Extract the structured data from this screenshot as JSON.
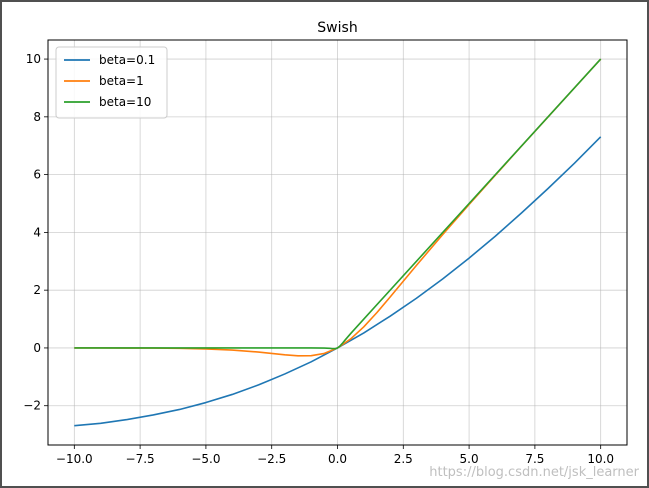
{
  "chart_data": {
    "type": "line",
    "title": "Swish",
    "xlabel": "",
    "ylabel": "",
    "xlim": [
      -11,
      11
    ],
    "ylim": [
      -3.36,
      10.66
    ],
    "xticks": [
      -10.0,
      -7.5,
      -5.0,
      -2.5,
      0.0,
      2.5,
      5.0,
      7.5,
      10.0
    ],
    "xtick_labels": [
      "−10.0",
      "−7.5",
      "−5.0",
      "−2.5",
      "0.0",
      "2.5",
      "5.0",
      "7.5",
      "10.0"
    ],
    "yticks": [
      -2,
      0,
      2,
      4,
      6,
      8,
      10
    ],
    "ytick_labels": [
      "−2",
      "0",
      "2",
      "4",
      "6",
      "8",
      "10"
    ],
    "grid": true,
    "legend": "top-left",
    "series": [
      {
        "name": "beta=0.1",
        "color": "#1f77b4",
        "x": [
          -10,
          -9,
          -8,
          -7,
          -6,
          -5,
          -4,
          -3,
          -2,
          -1,
          0,
          1,
          2,
          3,
          4,
          5,
          6,
          7,
          8,
          9,
          10
        ],
        "y": [
          -2.69,
          -2.61,
          -2.48,
          -2.32,
          -2.13,
          -1.89,
          -1.61,
          -1.28,
          -0.9,
          -0.48,
          0.0,
          0.52,
          1.1,
          1.72,
          2.39,
          3.11,
          3.87,
          4.68,
          5.52,
          6.39,
          7.31
        ]
      },
      {
        "name": "beta=1",
        "color": "#ff7f0e",
        "x": [
          -10,
          -9,
          -8,
          -7,
          -6,
          -5,
          -4,
          -3,
          -2,
          -1.5,
          -1,
          -0.5,
          0,
          0.5,
          1,
          1.5,
          2,
          3,
          4,
          5,
          6,
          7,
          8,
          9,
          10
        ],
        "y": [
          0.0,
          -0.001,
          -0.003,
          -0.006,
          -0.015,
          -0.033,
          -0.072,
          -0.142,
          -0.238,
          -0.274,
          -0.269,
          -0.189,
          0.0,
          0.311,
          0.731,
          1.226,
          1.762,
          2.858,
          3.928,
          4.967,
          5.985,
          6.994,
          7.997,
          8.999,
          10.0
        ]
      },
      {
        "name": "beta=10",
        "color": "#2ca02c",
        "x": [
          -10,
          -5,
          -1,
          -0.5,
          -0.3,
          -0.2,
          -0.1,
          0,
          0.1,
          0.2,
          0.3,
          0.5,
          1,
          5,
          10
        ],
        "y": [
          0.0,
          0.0,
          0.0,
          -0.003,
          -0.014,
          -0.024,
          -0.027,
          0.0,
          0.073,
          0.176,
          0.286,
          0.497,
          1.0,
          5.0,
          10.0
        ]
      }
    ]
  },
  "watermark": "https://blog.csdn.net/jsk_learner"
}
